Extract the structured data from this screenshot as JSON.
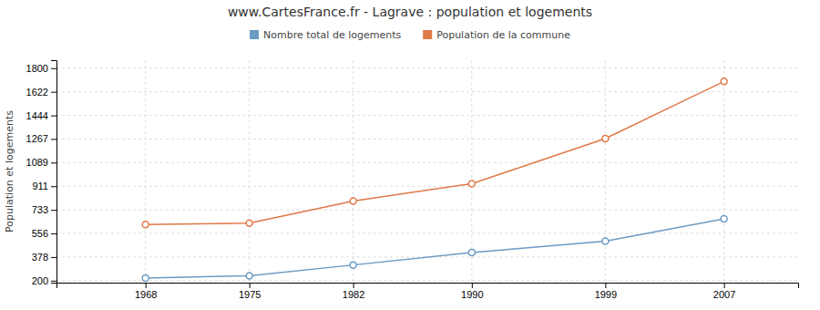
{
  "chart_data": {
    "type": "line",
    "title": "www.CartesFrance.fr - Lagrave : population et logements",
    "ylabel": "Population et logements",
    "x": [
      1968,
      1975,
      1982,
      1990,
      1999,
      2007
    ],
    "series": [
      {
        "name": "Nombre total de logements",
        "color": "#6b9ac4",
        "marker": "circle",
        "values": [
          220,
          237,
          318,
          412,
          497,
          665
        ]
      },
      {
        "name": "Population de la commune",
        "color": "#e07848",
        "marker": "circle",
        "values": [
          623,
          633,
          800,
          930,
          1270,
          1700
        ]
      }
    ],
    "xlim": [
      1962,
      2012
    ],
    "xticks": [
      1968,
      1975,
      1982,
      1990,
      1999,
      2007
    ],
    "ylim": [
      185,
      1860
    ],
    "yticks": [
      200,
      378,
      556,
      733,
      911,
      1089,
      1267,
      1444,
      1622,
      1800
    ],
    "grid": true,
    "legend": "top"
  }
}
